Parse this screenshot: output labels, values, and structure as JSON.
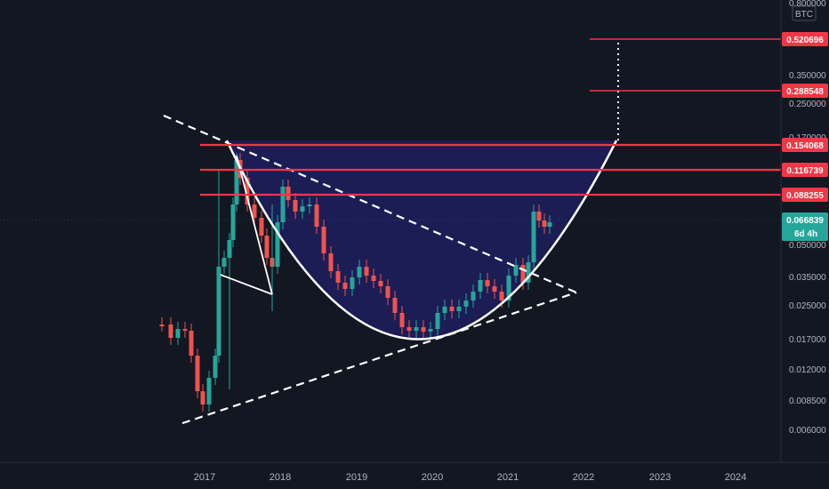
{
  "chart_data": {
    "type": "candlestick",
    "currency": "BTC",
    "y_scale": "log",
    "y_tick_labels": [
      "0.800000",
      "0.350000",
      "0.250000",
      "0.170000",
      "0.050000",
      "0.035000",
      "0.025000",
      "0.017000",
      "0.012000",
      "0.008500",
      "0.006000"
    ],
    "x_tick_labels": [
      "2017",
      "2018",
      "2019",
      "2020",
      "2021",
      "2022",
      "2023",
      "2024"
    ],
    "last_price": {
      "value": "0.066839",
      "countdown": "6d 4h",
      "color": "#26a69a"
    },
    "resistance_levels": [
      {
        "label": "0.520696",
        "color": "#f23645"
      },
      {
        "label": "0.288548",
        "color": "#f23645"
      },
      {
        "label": "0.154068",
        "color": "#f23645"
      },
      {
        "label": "0.116739",
        "color": "#f23645"
      },
      {
        "label": "0.088255",
        "color": "#f23645"
      }
    ],
    "annotations": [
      "descending trendline",
      "ascending trendline",
      "cup pattern",
      "projection dotted line"
    ],
    "colors": {
      "up": "#26a69a",
      "down": "#ef5350",
      "cup_fill": "#1f1f5e",
      "background": "#131722"
    }
  }
}
